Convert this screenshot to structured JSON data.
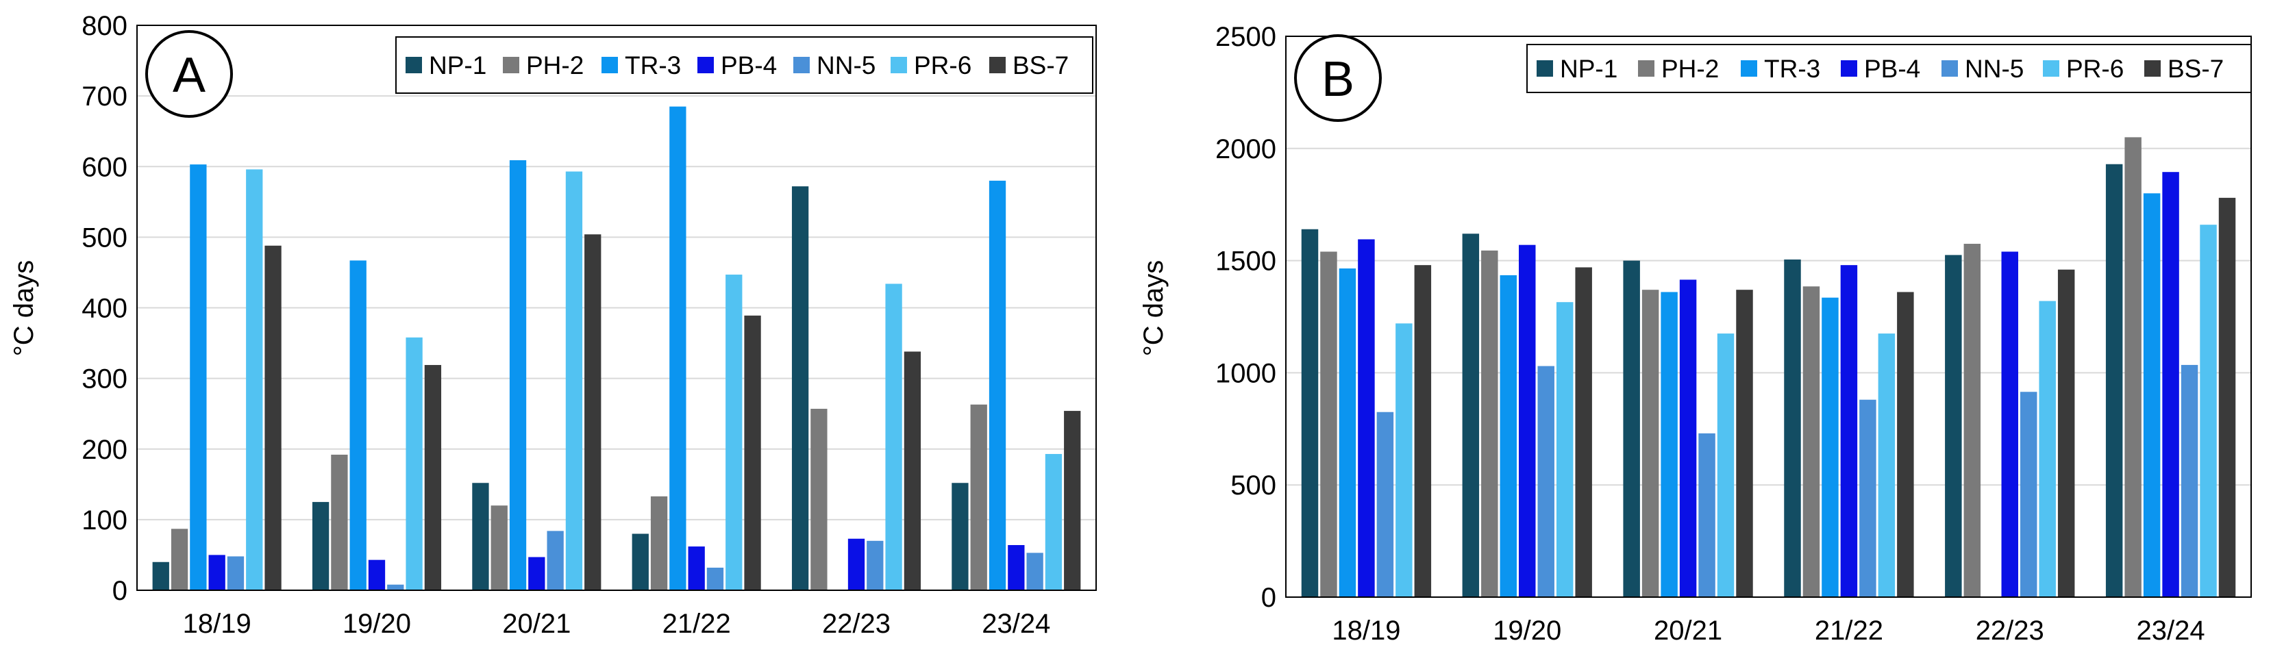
{
  "series_styles": [
    {
      "name": "NP-1",
      "color": "#134d63"
    },
    {
      "name": "PH-2",
      "color": "#7a7a7a"
    },
    {
      "name": "TR-3",
      "color": "#0b95f0"
    },
    {
      "name": "PB-4",
      "color": "#0a10e6"
    },
    {
      "name": "NN-5",
      "color": "#4a90d8"
    },
    {
      "name": "PR-6",
      "color": "#52c2f2"
    },
    {
      "name": "BS-7",
      "color": "#3a3a3a"
    }
  ],
  "chart_data": [
    {
      "type": "bar",
      "panel_label": "A",
      "ylabel": "°C days",
      "xlabel": "",
      "ylim": [
        0,
        800
      ],
      "yticks": [
        0,
        100,
        200,
        300,
        400,
        500,
        600,
        700,
        800
      ],
      "grid": true,
      "legend": "top-right",
      "categories": [
        "18/19",
        "19/20",
        "20/21",
        "21/22",
        "22/23",
        "23/24"
      ],
      "series": [
        {
          "name": "NP-1",
          "values": [
            40,
            125,
            152,
            80,
            572,
            152
          ]
        },
        {
          "name": "PH-2",
          "values": [
            87,
            192,
            120,
            133,
            257,
            263
          ]
        },
        {
          "name": "TR-3",
          "values": [
            603,
            467,
            609,
            685,
            0,
            580
          ]
        },
        {
          "name": "PB-4",
          "values": [
            50,
            43,
            47,
            62,
            73,
            64
          ]
        },
        {
          "name": "NN-5",
          "values": [
            48,
            8,
            84,
            32,
            70,
            53
          ]
        },
        {
          "name": "PR-6",
          "values": [
            596,
            358,
            593,
            447,
            434,
            193
          ]
        },
        {
          "name": "BS-7",
          "values": [
            488,
            319,
            504,
            389,
            338,
            254
          ]
        }
      ]
    },
    {
      "type": "bar",
      "panel_label": "B",
      "ylabel": "°C days",
      "xlabel": "",
      "ylim": [
        0,
        2500
      ],
      "yticks": [
        0,
        500,
        1000,
        1500,
        2000,
        2500
      ],
      "grid": true,
      "legend": "top-right",
      "categories": [
        "18/19",
        "19/20",
        "20/21",
        "21/22",
        "22/23",
        "23/24"
      ],
      "series": [
        {
          "name": "NP-1",
          "values": [
            1640,
            1620,
            1500,
            1505,
            1525,
            1930
          ]
        },
        {
          "name": "PH-2",
          "values": [
            1540,
            1545,
            1370,
            1385,
            1575,
            2050
          ]
        },
        {
          "name": "TR-3",
          "values": [
            1465,
            1435,
            1360,
            1335,
            0,
            1800
          ]
        },
        {
          "name": "PB-4",
          "values": [
            1595,
            1570,
            1415,
            1480,
            1540,
            1895
          ]
        },
        {
          "name": "NN-5",
          "values": [
            825,
            1030,
            730,
            880,
            915,
            1035
          ]
        },
        {
          "name": "PR-6",
          "values": [
            1220,
            1315,
            1175,
            1175,
            1320,
            1660
          ]
        },
        {
          "name": "BS-7",
          "values": [
            1480,
            1470,
            1370,
            1360,
            1460,
            1780
          ]
        }
      ]
    }
  ]
}
